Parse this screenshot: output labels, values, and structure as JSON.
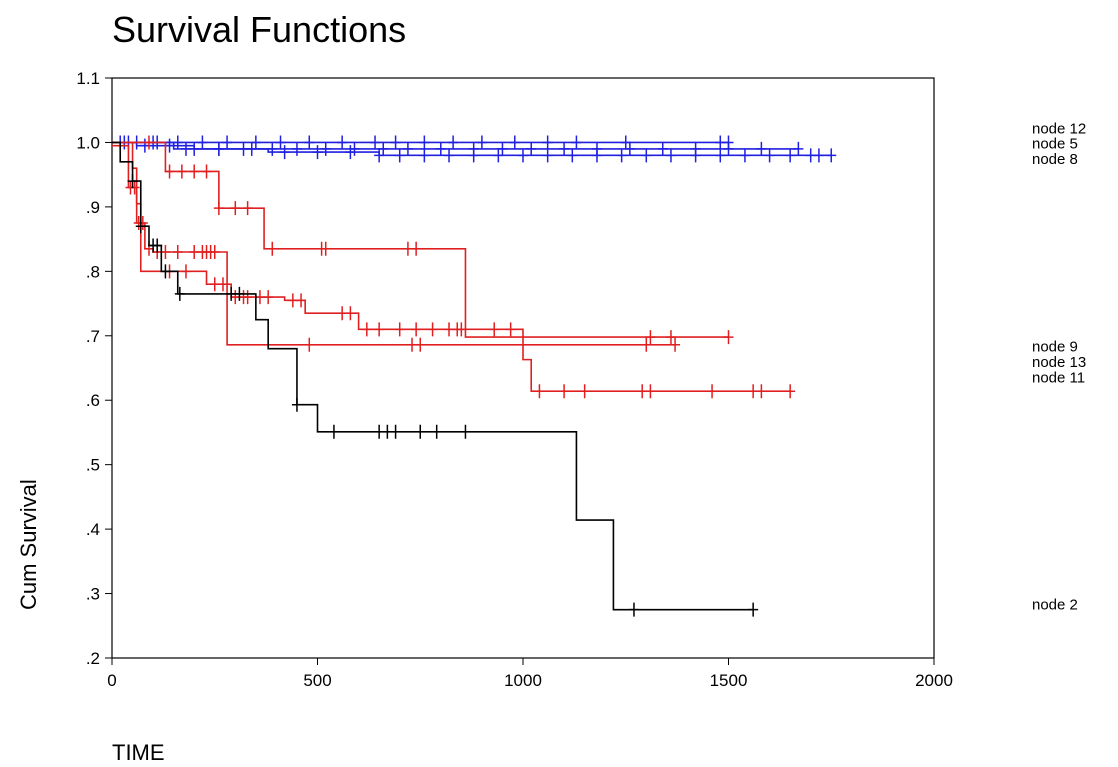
{
  "chart_data": {
    "type": "line",
    "title": "Survival Functions",
    "xlabel": "TIME",
    "ylabel": "Cum Survival",
    "xlim": [
      0,
      2000
    ],
    "ylim": [
      0.2,
      1.1
    ],
    "x_ticks": [
      "0",
      "500",
      "1000",
      "1500",
      "2000"
    ],
    "y_ticks": [
      ".2",
      ".3",
      ".4",
      ".5",
      ".6",
      ".7",
      ".8",
      ".9",
      "1.0",
      "1.1"
    ],
    "grid": false,
    "legend_position": "right",
    "colors": {
      "node12": "#2020e0",
      "node5": "#2020e0",
      "node8": "#2020e0",
      "node9": "#e02020",
      "node13": "#e02020",
      "node11": "#e02020",
      "node2": "#000000"
    },
    "series": [
      {
        "name": "node 12",
        "color": "#2020e0",
        "steps": [
          [
            0,
            1.0
          ],
          [
            1500,
            1.0
          ]
        ],
        "censored": [
          20,
          60,
          110,
          160,
          220,
          280,
          350,
          410,
          480,
          560,
          640,
          690,
          760,
          830,
          900,
          980,
          1060,
          1130,
          1250,
          1480,
          1500
        ]
      },
      {
        "name": "node 5",
        "color": "#2020e0",
        "steps": [
          [
            0,
            1.0
          ],
          [
            60,
            0.995
          ],
          [
            200,
            0.99
          ],
          [
            1670,
            0.99
          ]
        ],
        "censored": [
          30,
          80,
          140,
          200,
          260,
          320,
          390,
          450,
          520,
          590,
          660,
          720,
          800,
          880,
          950,
          1020,
          1100,
          1180,
          1260,
          1340,
          1420,
          1500,
          1580,
          1670
        ]
      },
      {
        "name": "node 8",
        "color": "#2020e0",
        "steps": [
          [
            0,
            1.0
          ],
          [
            150,
            0.99
          ],
          [
            380,
            0.985
          ],
          [
            650,
            0.98
          ],
          [
            1750,
            0.98
          ]
        ],
        "censored": [
          40,
          100,
          180,
          260,
          340,
          420,
          500,
          580,
          650,
          700,
          760,
          820,
          880,
          940,
          1000,
          1060,
          1120,
          1180,
          1240,
          1300,
          1360,
          1420,
          1480,
          1540,
          1600,
          1650,
          1700,
          1720,
          1750
        ]
      },
      {
        "name": "node 9",
        "color": "#e02020",
        "steps": [
          [
            0,
            1.0
          ],
          [
            130,
            0.955
          ],
          [
            260,
            0.898
          ],
          [
            370,
            0.835
          ],
          [
            860,
            0.698
          ],
          [
            1500,
            0.698
          ]
        ],
        "censored": [
          90,
          140,
          170,
          200,
          230,
          260,
          300,
          330,
          390,
          510,
          520,
          720,
          740,
          1310,
          1360,
          1500
        ]
      },
      {
        "name": "node 13",
        "color": "#e02020",
        "steps": [
          [
            0,
            0.995
          ],
          [
            40,
            0.93
          ],
          [
            60,
            0.875
          ],
          [
            80,
            0.835
          ],
          [
            100,
            0.83
          ],
          [
            280,
            0.686
          ],
          [
            1370,
            0.686
          ]
        ],
        "censored": [
          45,
          55,
          65,
          75,
          90,
          110,
          130,
          160,
          200,
          220,
          230,
          240,
          250,
          480,
          730,
          750,
          1300,
          1370
        ]
      },
      {
        "name": "node 11",
        "color": "#e02020",
        "steps": [
          [
            0,
            1.0
          ],
          [
            50,
            0.96
          ],
          [
            60,
            0.905
          ],
          [
            70,
            0.8
          ],
          [
            230,
            0.78
          ],
          [
            290,
            0.76
          ],
          [
            420,
            0.755
          ],
          [
            470,
            0.735
          ],
          [
            600,
            0.71
          ],
          [
            1000,
            0.663
          ],
          [
            1020,
            0.614
          ],
          [
            1650,
            0.614
          ]
        ],
        "censored": [
          140,
          180,
          250,
          270,
          300,
          320,
          330,
          360,
          380,
          440,
          460,
          560,
          580,
          620,
          650,
          700,
          740,
          780,
          820,
          840,
          850,
          930,
          970,
          1040,
          1100,
          1150,
          1290,
          1310,
          1460,
          1560,
          1580,
          1650
        ]
      },
      {
        "name": "node 2",
        "color": "#000000",
        "steps": [
          [
            0,
            1.0
          ],
          [
            20,
            0.97
          ],
          [
            50,
            0.94
          ],
          [
            70,
            0.87
          ],
          [
            90,
            0.84
          ],
          [
            120,
            0.8
          ],
          [
            160,
            0.765
          ],
          [
            350,
            0.725
          ],
          [
            380,
            0.68
          ],
          [
            450,
            0.593
          ],
          [
            500,
            0.551
          ],
          [
            1130,
            0.414
          ],
          [
            1220,
            0.275
          ],
          [
            1560,
            0.275
          ]
        ],
        "censored": [
          50,
          70,
          100,
          110,
          130,
          165,
          290,
          310,
          450,
          540,
          650,
          670,
          690,
          750,
          790,
          860,
          1270,
          1560
        ]
      }
    ],
    "legend_entries": [
      {
        "label": "node 12",
        "y": 1.022
      },
      {
        "label": "node 5",
        "y": 0.998
      },
      {
        "label": "node 8",
        "y": 0.974
      },
      {
        "label": "node 9",
        "y": 0.683
      },
      {
        "label": "node 13",
        "y": 0.659
      },
      {
        "label": "node 11",
        "y": 0.635
      },
      {
        "label": "node 2",
        "y": 0.283
      }
    ]
  }
}
